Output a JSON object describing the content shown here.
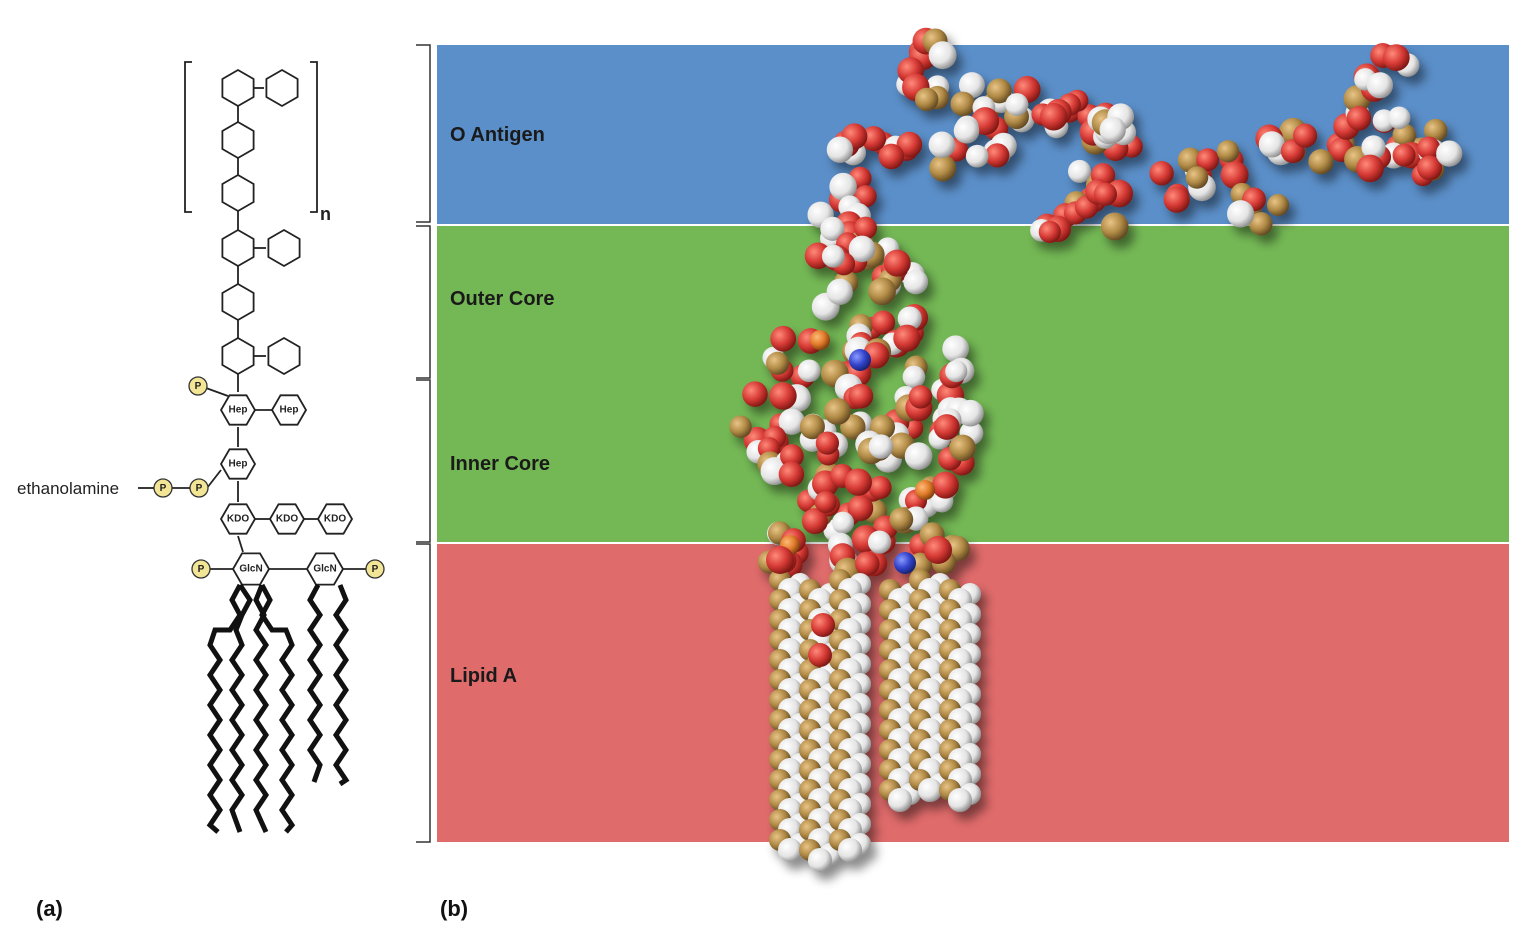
{
  "panel_a": {
    "label": "(a)",
    "repeat_subscript": "n",
    "side_label": "ethanolamine",
    "phosphate": "P",
    "sugars": {
      "hep": "Hep",
      "kdo": "KDO",
      "glcn": "GlcN"
    }
  },
  "panel_b": {
    "label": "(b)",
    "regions": [
      {
        "label": "O Antigen",
        "color": "#5b8fc9"
      },
      {
        "label": "Outer Core",
        "color": "#74b855"
      },
      {
        "label": "Inner Core",
        "color": "#74b855"
      },
      {
        "label": "Lipid A",
        "color": "#e06b6b"
      }
    ],
    "atom_colors": {
      "oxygen": "#d63a35",
      "hydrogen": "#eeeeee",
      "carbon": "#b08a45",
      "nitrogen": "#3344cc",
      "phosphorus": "#e07a2a"
    }
  }
}
